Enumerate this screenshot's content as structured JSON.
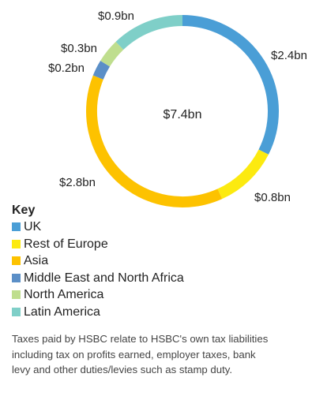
{
  "chart_data": {
    "type": "pie",
    "center_label": "$7.4bn",
    "slices": [
      {
        "name": "UK",
        "value": 2.4,
        "label": "$2.4bn",
        "color": "#4A9ED6"
      },
      {
        "name": "Rest of Europe",
        "value": 0.8,
        "label": "$0.8bn",
        "color": "#FCEA10"
      },
      {
        "name": "Asia",
        "value": 2.8,
        "label": "$2.8bn",
        "color": "#FDC200"
      },
      {
        "name": "Middle East and North Africa",
        "value": 0.2,
        "label": "$0.2bn",
        "color": "#5B8FC7"
      },
      {
        "name": "North America",
        "value": 0.3,
        "label": "$0.3bn",
        "color": "#BFDE8E"
      },
      {
        "name": "Latin America",
        "value": 0.9,
        "label": "$0.9bn",
        "color": "#7FCFC8"
      }
    ],
    "legend_placement": "bottom-left"
  },
  "legend": {
    "title": "Key",
    "items": [
      {
        "label": "UK",
        "color": "#4A9ED6"
      },
      {
        "label": "Rest of Europe",
        "color": "#FCEA10"
      },
      {
        "label": "Asia",
        "color": "#FDC200"
      },
      {
        "label": "Middle East and North Africa",
        "color": "#5B8FC7"
      },
      {
        "label": "North America",
        "color": "#BFDE8E"
      },
      {
        "label": "Latin America",
        "color": "#7FCFC8"
      }
    ]
  },
  "note": "Taxes paid by HSBC relate to HSBC's own tax liabilities including tax on profits earned, employer taxes, bank levy and other duties/levies such as stamp duty."
}
